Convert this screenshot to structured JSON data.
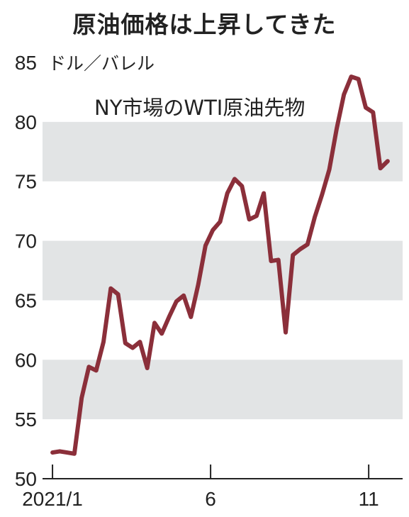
{
  "chart_data": {
    "type": "line",
    "title": "原油価格は上昇してきた",
    "unit_label": "ドル／バレル",
    "annotation": "NY市場のWTI原油先物",
    "ylim": [
      50,
      85
    ],
    "yticks": [
      50,
      55,
      60,
      65,
      70,
      75,
      80,
      85
    ],
    "shaded_bands": [
      [
        55,
        60
      ],
      [
        65,
        70
      ],
      [
        75,
        80
      ]
    ],
    "xticks": [
      {
        "label": "2021/1",
        "t": 0
      },
      {
        "label": "6",
        "t": 21.7
      },
      {
        "label": "11",
        "t": 43.4
      }
    ],
    "series": [
      {
        "color": "#8b2f3a",
        "points": [
          [
            0,
            52.2
          ],
          [
            1,
            52.3
          ],
          [
            2,
            52.2
          ],
          [
            3,
            52.1
          ],
          [
            4,
            56.8
          ],
          [
            5,
            59.4
          ],
          [
            6,
            59.1
          ],
          [
            7,
            61.5
          ],
          [
            8,
            66.0
          ],
          [
            9,
            65.5
          ],
          [
            10,
            61.4
          ],
          [
            11,
            61.0
          ],
          [
            12,
            61.5
          ],
          [
            13,
            59.3
          ],
          [
            14,
            63.1
          ],
          [
            15,
            62.2
          ],
          [
            16,
            63.6
          ],
          [
            17,
            64.9
          ],
          [
            18,
            65.4
          ],
          [
            19,
            63.6
          ],
          [
            20,
            66.3
          ],
          [
            21,
            69.6
          ],
          [
            22,
            70.9
          ],
          [
            23,
            71.6
          ],
          [
            24,
            74.0
          ],
          [
            25,
            75.2
          ],
          [
            26,
            74.6
          ],
          [
            27,
            71.8
          ],
          [
            28,
            72.1
          ],
          [
            29,
            74.0
          ],
          [
            30,
            68.3
          ],
          [
            31,
            68.4
          ],
          [
            32,
            62.3
          ],
          [
            33,
            68.8
          ],
          [
            34,
            69.3
          ],
          [
            35,
            69.7
          ],
          [
            36,
            72.0
          ],
          [
            37,
            73.9
          ],
          [
            38,
            76.0
          ],
          [
            39,
            79.4
          ],
          [
            40,
            82.3
          ],
          [
            41,
            83.8
          ],
          [
            42,
            83.6
          ],
          [
            43,
            81.2
          ],
          [
            44,
            80.8
          ],
          [
            45,
            76.1
          ],
          [
            46,
            76.7
          ]
        ]
      }
    ]
  }
}
